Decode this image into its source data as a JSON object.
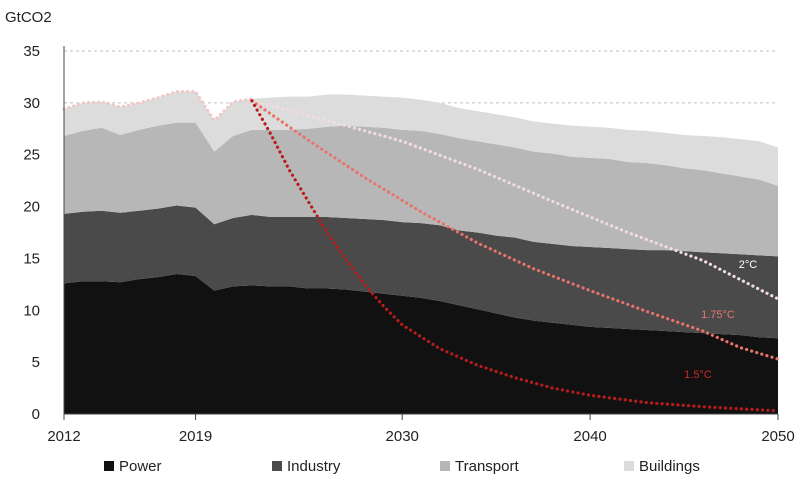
{
  "chart_data": {
    "type": "area",
    "unit_label": "GtCO2",
    "x_ticks": [
      "2012",
      "2019",
      "2030",
      "2040",
      "2050"
    ],
    "y_ticks": [
      0,
      5,
      10,
      15,
      20,
      25,
      30,
      35
    ],
    "xlim": [
      2012,
      2050
    ],
    "ylim": [
      0,
      35
    ],
    "grid": "horizontal dashed",
    "legend_position": "bottom",
    "stacked": true,
    "x": [
      2012,
      2013,
      2014,
      2015,
      2016,
      2017,
      2018,
      2019,
      2020,
      2021,
      2022,
      2023,
      2024,
      2025,
      2026,
      2027,
      2028,
      2029,
      2030,
      2031,
      2032,
      2033,
      2034,
      2035,
      2036,
      2037,
      2038,
      2039,
      2040,
      2041,
      2042,
      2043,
      2044,
      2045,
      2046,
      2047,
      2048,
      2049,
      2050
    ],
    "series": [
      {
        "name": "Power",
        "color": "#111111",
        "values": [
          12.6,
          12.8,
          12.8,
          12.7,
          13.0,
          13.2,
          13.5,
          13.3,
          11.9,
          12.3,
          12.4,
          12.3,
          12.3,
          12.1,
          12.1,
          12.0,
          11.8,
          11.6,
          11.4,
          11.2,
          10.9,
          10.5,
          10.1,
          9.7,
          9.3,
          9.0,
          8.8,
          8.6,
          8.4,
          8.3,
          8.2,
          8.1,
          8.0,
          7.9,
          7.8,
          7.7,
          7.6,
          7.4,
          7.3
        ]
      },
      {
        "name": "Industry",
        "color": "#4a4a4a",
        "values": [
          6.7,
          6.7,
          6.8,
          6.7,
          6.6,
          6.6,
          6.6,
          6.6,
          6.4,
          6.6,
          6.8,
          6.7,
          6.7,
          6.9,
          6.9,
          6.9,
          7.0,
          7.1,
          7.1,
          7.2,
          7.3,
          7.2,
          7.4,
          7.5,
          7.7,
          7.6,
          7.6,
          7.6,
          7.7,
          7.7,
          7.7,
          7.7,
          7.8,
          7.8,
          7.8,
          7.8,
          7.8,
          7.9,
          7.9
        ]
      },
      {
        "name": "Transport",
        "color": "#b7b7b7",
        "values": [
          7.5,
          7.8,
          8.0,
          7.5,
          7.8,
          8.0,
          8.0,
          8.2,
          7.0,
          7.9,
          8.2,
          8.4,
          8.4,
          8.5,
          8.7,
          8.9,
          8.9,
          8.9,
          8.9,
          8.9,
          8.8,
          8.9,
          8.8,
          8.8,
          8.7,
          8.7,
          8.7,
          8.6,
          8.6,
          8.6,
          8.4,
          8.4,
          8.2,
          8.0,
          7.9,
          7.7,
          7.5,
          7.3,
          6.8
        ]
      },
      {
        "name": "Buildings",
        "color": "#dcdcdc",
        "values": [
          2.6,
          2.7,
          2.5,
          2.7,
          2.6,
          2.7,
          3.0,
          3.0,
          3.0,
          3.3,
          3.0,
          3.1,
          3.2,
          3.1,
          3.1,
          3.0,
          3.0,
          3.0,
          3.1,
          3.0,
          3.0,
          2.9,
          2.9,
          2.9,
          2.9,
          2.9,
          2.9,
          3.0,
          3.0,
          3.0,
          3.1,
          3.1,
          3.1,
          3.2,
          3.3,
          3.5,
          3.6,
          3.7,
          3.7
        ]
      }
    ],
    "pathways": [
      {
        "label": "2°C",
        "color": "#f2dcdc",
        "label_color": "#ffffff",
        "points": [
          [
            2022,
            30.2
          ],
          [
            2026,
            28.3
          ],
          [
            2030,
            26.3
          ],
          [
            2034,
            23.6
          ],
          [
            2038,
            20.5
          ],
          [
            2042,
            17.5
          ],
          [
            2046,
            14.8
          ],
          [
            2050,
            11.1
          ]
        ]
      },
      {
        "label": "1.75°C",
        "color": "#e8736a",
        "label_color": "#e8736a",
        "points": [
          [
            2022,
            30.2
          ],
          [
            2025,
            26.4
          ],
          [
            2028,
            22.8
          ],
          [
            2031,
            19.5
          ],
          [
            2034,
            16.5
          ],
          [
            2037,
            14.0
          ],
          [
            2040,
            11.9
          ],
          [
            2043,
            9.9
          ],
          [
            2046,
            8.0
          ],
          [
            2048,
            6.4
          ],
          [
            2050,
            5.3
          ]
        ]
      },
      {
        "label": "1.5°C",
        "color": "#b71c1c",
        "label_color": "#cc2a2a",
        "points": [
          [
            2022,
            30.2
          ],
          [
            2023,
            27.0
          ],
          [
            2024,
            23.5
          ],
          [
            2025,
            20.5
          ],
          [
            2026,
            17.5
          ],
          [
            2027,
            14.9
          ],
          [
            2028,
            12.5
          ],
          [
            2029,
            10.4
          ],
          [
            2030,
            8.6
          ],
          [
            2032,
            6.3
          ],
          [
            2034,
            4.7
          ],
          [
            2036,
            3.5
          ],
          [
            2038,
            2.5
          ],
          [
            2040,
            1.8
          ],
          [
            2043,
            1.1
          ],
          [
            2046,
            0.7
          ],
          [
            2050,
            0.3
          ]
        ]
      }
    ],
    "historical_outline": {
      "color": "#f3c5c5",
      "x_end": 2022
    }
  }
}
